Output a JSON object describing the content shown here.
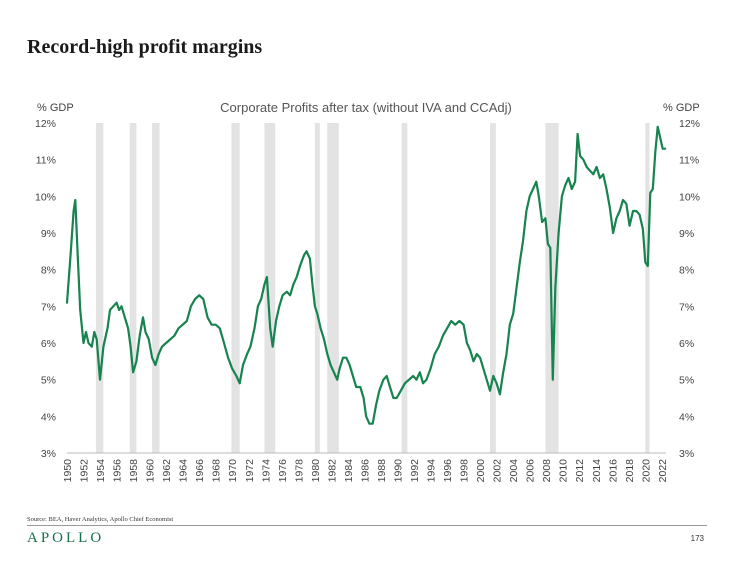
{
  "page": {
    "title": "Record-high profit margins",
    "source": "Source: BEA, Haver Analytics, Apollo Chief Economist",
    "brand": "APOLLO",
    "page_number": "173"
  },
  "colors": {
    "series": "#17834f",
    "recession": "#e3e3e3",
    "brand": "#17704a"
  },
  "chart_data": {
    "type": "line",
    "title": "Corporate Profits after tax (without IVA and CCAdj)",
    "ylabel_left": "% GDP",
    "ylabel_right": "% GDP",
    "ylim": [
      3,
      12
    ],
    "xlim": [
      1950,
      2022.5
    ],
    "yticks": [
      "3%",
      "4%",
      "5%",
      "6%",
      "7%",
      "8%",
      "9%",
      "10%",
      "11%",
      "12%"
    ],
    "xticks": [
      "1950",
      "1952",
      "1954",
      "1956",
      "1958",
      "1960",
      "1962",
      "1964",
      "1966",
      "1968",
      "1970",
      "1972",
      "1974",
      "1976",
      "1978",
      "1980",
      "1982",
      "1984",
      "1986",
      "1988",
      "1990",
      "1992",
      "1994",
      "1996",
      "1998",
      "2000",
      "2002",
      "2004",
      "2006",
      "2008",
      "2010",
      "2012",
      "2014",
      "2016",
      "2018",
      "2020",
      "2022"
    ],
    "grid": false,
    "legend": "none",
    "recessions": [
      [
        1953.5,
        1954.4
      ],
      [
        1957.6,
        1958.4
      ],
      [
        1960.3,
        1961.2
      ],
      [
        1969.9,
        1970.9
      ],
      [
        1973.9,
        1975.2
      ],
      [
        1980.0,
        1980.6
      ],
      [
        1981.5,
        1982.9
      ],
      [
        1990.5,
        1991.2
      ],
      [
        2001.2,
        2001.9
      ],
      [
        2007.9,
        2009.5
      ],
      [
        2020.0,
        2020.5
      ]
    ],
    "series": [
      {
        "values": [
          [
            1950.0,
            7.1
          ],
          [
            1950.4,
            8.3
          ],
          [
            1950.8,
            9.6
          ],
          [
            1951.0,
            9.9
          ],
          [
            1951.3,
            8.4
          ],
          [
            1951.6,
            6.9
          ],
          [
            1952.0,
            6.0
          ],
          [
            1952.3,
            6.3
          ],
          [
            1952.6,
            6.0
          ],
          [
            1953.0,
            5.9
          ],
          [
            1953.3,
            6.3
          ],
          [
            1953.6,
            6.1
          ],
          [
            1954.0,
            5.0
          ],
          [
            1954.4,
            5.9
          ],
          [
            1954.9,
            6.4
          ],
          [
            1955.2,
            6.9
          ],
          [
            1955.6,
            7.0
          ],
          [
            1956.0,
            7.1
          ],
          [
            1956.3,
            6.9
          ],
          [
            1956.6,
            7.0
          ],
          [
            1957.0,
            6.7
          ],
          [
            1957.4,
            6.4
          ],
          [
            1957.7,
            5.9
          ],
          [
            1958.0,
            5.2
          ],
          [
            1958.4,
            5.5
          ],
          [
            1958.8,
            6.2
          ],
          [
            1959.2,
            6.7
          ],
          [
            1959.5,
            6.3
          ],
          [
            1959.9,
            6.1
          ],
          [
            1960.3,
            5.6
          ],
          [
            1960.7,
            5.4
          ],
          [
            1961.1,
            5.7
          ],
          [
            1961.5,
            5.9
          ],
          [
            1962.0,
            6.0
          ],
          [
            1962.5,
            6.1
          ],
          [
            1963.0,
            6.2
          ],
          [
            1963.5,
            6.4
          ],
          [
            1964.0,
            6.5
          ],
          [
            1964.5,
            6.6
          ],
          [
            1965.0,
            7.0
          ],
          [
            1965.5,
            7.2
          ],
          [
            1966.0,
            7.3
          ],
          [
            1966.5,
            7.2
          ],
          [
            1967.0,
            6.7
          ],
          [
            1967.5,
            6.5
          ],
          [
            1968.0,
            6.5
          ],
          [
            1968.5,
            6.4
          ],
          [
            1969.0,
            6.0
          ],
          [
            1969.5,
            5.6
          ],
          [
            1970.0,
            5.3
          ],
          [
            1970.5,
            5.1
          ],
          [
            1970.9,
            4.9
          ],
          [
            1971.3,
            5.4
          ],
          [
            1971.8,
            5.7
          ],
          [
            1972.2,
            5.9
          ],
          [
            1972.7,
            6.4
          ],
          [
            1973.1,
            7.0
          ],
          [
            1973.5,
            7.2
          ],
          [
            1973.9,
            7.6
          ],
          [
            1974.2,
            7.8
          ],
          [
            1974.6,
            6.4
          ],
          [
            1974.9,
            5.9
          ],
          [
            1975.3,
            6.6
          ],
          [
            1975.7,
            7.0
          ],
          [
            1976.1,
            7.3
          ],
          [
            1976.6,
            7.4
          ],
          [
            1977.0,
            7.3
          ],
          [
            1977.4,
            7.6
          ],
          [
            1977.8,
            7.8
          ],
          [
            1978.2,
            8.1
          ],
          [
            1978.7,
            8.4
          ],
          [
            1979.0,
            8.5
          ],
          [
            1979.4,
            8.3
          ],
          [
            1979.7,
            7.6
          ],
          [
            1980.0,
            7.0
          ],
          [
            1980.3,
            6.8
          ],
          [
            1980.7,
            6.4
          ],
          [
            1981.1,
            6.1
          ],
          [
            1981.5,
            5.7
          ],
          [
            1981.9,
            5.4
          ],
          [
            1982.3,
            5.2
          ],
          [
            1982.7,
            5.0
          ],
          [
            1983.0,
            5.3
          ],
          [
            1983.4,
            5.6
          ],
          [
            1983.8,
            5.6
          ],
          [
            1984.2,
            5.4
          ],
          [
            1984.6,
            5.1
          ],
          [
            1985.0,
            4.8
          ],
          [
            1985.5,
            4.8
          ],
          [
            1985.9,
            4.5
          ],
          [
            1986.2,
            4.0
          ],
          [
            1986.6,
            3.8
          ],
          [
            1987.0,
            3.8
          ],
          [
            1987.4,
            4.3
          ],
          [
            1987.8,
            4.7
          ],
          [
            1988.3,
            5.0
          ],
          [
            1988.7,
            5.1
          ],
          [
            1989.1,
            4.8
          ],
          [
            1989.5,
            4.5
          ],
          [
            1989.9,
            4.5
          ],
          [
            1990.4,
            4.7
          ],
          [
            1990.9,
            4.9
          ],
          [
            1991.4,
            5.0
          ],
          [
            1991.9,
            5.1
          ],
          [
            1992.3,
            5.0
          ],
          [
            1992.7,
            5.2
          ],
          [
            1993.1,
            4.9
          ],
          [
            1993.5,
            5.0
          ],
          [
            1994.0,
            5.3
          ],
          [
            1994.5,
            5.7
          ],
          [
            1995.0,
            5.9
          ],
          [
            1995.5,
            6.2
          ],
          [
            1996.0,
            6.4
          ],
          [
            1996.5,
            6.6
          ],
          [
            1997.0,
            6.5
          ],
          [
            1997.5,
            6.6
          ],
          [
            1998.0,
            6.5
          ],
          [
            1998.4,
            6.0
          ],
          [
            1998.8,
            5.8
          ],
          [
            1999.2,
            5.5
          ],
          [
            1999.6,
            5.7
          ],
          [
            2000.0,
            5.6
          ],
          [
            2000.4,
            5.3
          ],
          [
            2000.8,
            5.0
          ],
          [
            2001.2,
            4.7
          ],
          [
            2001.6,
            5.1
          ],
          [
            2002.0,
            4.9
          ],
          [
            2002.4,
            4.6
          ],
          [
            2002.8,
            5.2
          ],
          [
            2003.2,
            5.7
          ],
          [
            2003.6,
            6.5
          ],
          [
            2004.0,
            6.8
          ],
          [
            2004.4,
            7.5
          ],
          [
            2004.8,
            8.2
          ],
          [
            2005.2,
            8.8
          ],
          [
            2005.6,
            9.6
          ],
          [
            2006.0,
            10.0
          ],
          [
            2006.4,
            10.2
          ],
          [
            2006.8,
            10.4
          ],
          [
            2007.1,
            10.0
          ],
          [
            2007.5,
            9.3
          ],
          [
            2007.9,
            9.4
          ],
          [
            2008.2,
            8.7
          ],
          [
            2008.5,
            8.6
          ],
          [
            2008.8,
            5.0
          ],
          [
            2009.1,
            7.5
          ],
          [
            2009.5,
            9.0
          ],
          [
            2009.9,
            10.0
          ],
          [
            2010.3,
            10.3
          ],
          [
            2010.7,
            10.5
          ],
          [
            2011.1,
            10.2
          ],
          [
            2011.5,
            10.4
          ],
          [
            2011.8,
            11.7
          ],
          [
            2012.1,
            11.1
          ],
          [
            2012.5,
            11.0
          ],
          [
            2012.9,
            10.8
          ],
          [
            2013.3,
            10.7
          ],
          [
            2013.7,
            10.6
          ],
          [
            2014.1,
            10.8
          ],
          [
            2014.5,
            10.5
          ],
          [
            2014.9,
            10.6
          ],
          [
            2015.3,
            10.2
          ],
          [
            2015.7,
            9.7
          ],
          [
            2016.1,
            9.0
          ],
          [
            2016.5,
            9.4
          ],
          [
            2016.9,
            9.6
          ],
          [
            2017.3,
            9.9
          ],
          [
            2017.7,
            9.8
          ],
          [
            2018.1,
            9.2
          ],
          [
            2018.5,
            9.6
          ],
          [
            2018.9,
            9.6
          ],
          [
            2019.3,
            9.5
          ],
          [
            2019.7,
            9.1
          ],
          [
            2020.0,
            8.2
          ],
          [
            2020.3,
            8.1
          ],
          [
            2020.6,
            10.1
          ],
          [
            2020.9,
            10.2
          ],
          [
            2021.2,
            11.2
          ],
          [
            2021.5,
            11.9
          ],
          [
            2021.8,
            11.6
          ],
          [
            2022.1,
            11.3
          ],
          [
            2022.4,
            11.3
          ]
        ]
      }
    ]
  }
}
